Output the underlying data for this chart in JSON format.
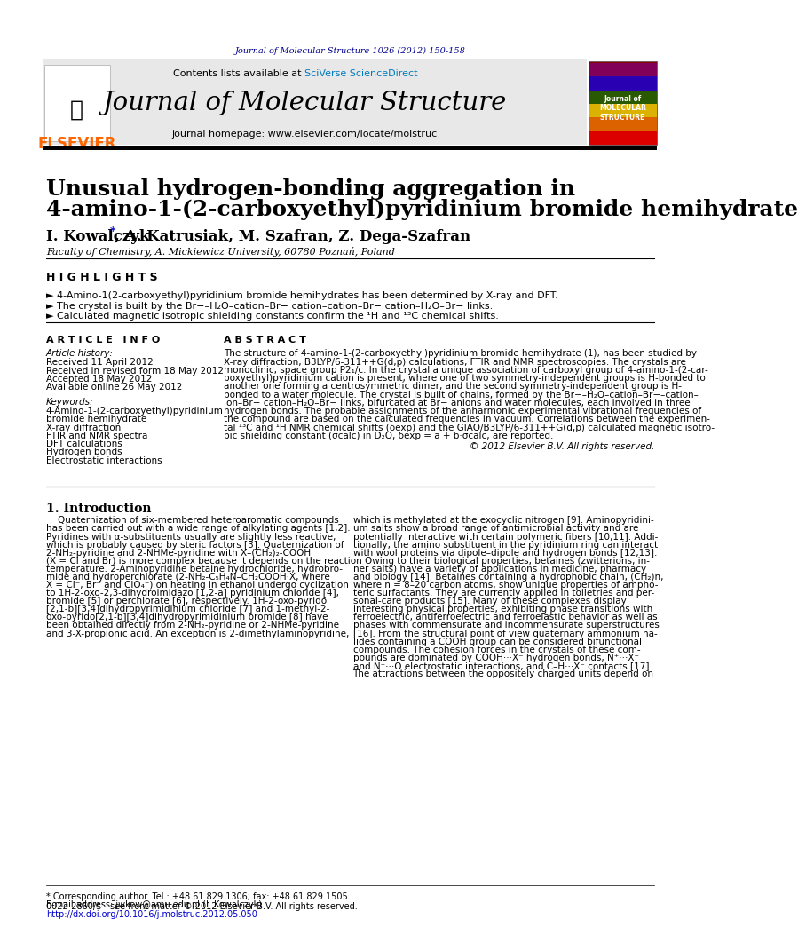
{
  "journal_ref": "Journal of Molecular Structure 1026 (2012) 150-158",
  "journal_name": "Journal of Molecular Structure",
  "journal_homepage": "journal homepage: www.elsevier.com/locate/molstruc",
  "contents_line": "Contents lists available at",
  "sciverse": "SciVerse ScienceDirect",
  "elsevier_color": "#FF6600",
  "title_line1": "Unusual hydrogen-bonding aggregation in",
  "title_line2": "4-amino-1-(2-carboxyethyl)pyridinium bromide hemihydrate",
  "author_part1": "I. Kowalczyk",
  "author_star": "*",
  "author_part2": ", A. Katrusiak, M. Szafran, Z. Dega-Szafran",
  "affiliation": "Faculty of Chemistry, A. Mickiewicz University, 60780 Poznań, Poland",
  "highlights_title": "H I G H L I G H T S",
  "highlight1": "► 4-Amino-1(2-carboxyethyl)pyridinium bromide hemihydrates has been determined by X-ray and DFT.",
  "highlight2": "► The crystal is built by the Br−–H₂O–cation–Br− cation–cation–Br− cation–H₂O–Br− links.",
  "highlight3": "► Calculated magnetic isotropic shielding constants confirm the ¹H and ¹³C chemical shifts.",
  "article_info_title": "A R T I C L E   I N F O",
  "abstract_title": "A B S T R A C T",
  "article_history_label": "Article history:",
  "received": "Received 11 April 2012",
  "received_revised": "Received in revised form 18 May 2012",
  "accepted": "Accepted 18 May 2012",
  "available": "Available online 26 May 2012",
  "keywords_label": "Keywords:",
  "keywords": [
    "4-Amino-1-(2-carboxyethyl)pyridinium",
    "bromide hemihydrate",
    "X-ray diffraction",
    "FTIR and NMR spectra",
    "DFT calculations",
    "Hydrogen bonds",
    "Electrostatic interactions"
  ],
  "abstract_lines": [
    "The structure of 4-amino-1-(2-carboxyethyl)pyridinium bromide hemihydrate (1), has been studied by",
    "X-ray diffraction, B3LYP/6-311++G(d,p) calculations, FTIR and NMR spectroscopies. The crystals are",
    "monoclinic, space group P2₁/c. In the crystal a unique association of carboxyl group of 4-amino-1-(2-car-",
    "boxyethyl)pyridinium cation is present, where one of two symmetry-independent groups is H-bonded to",
    "another one forming a centrosymmetric dimer, and the second symmetry-independent group is H-",
    "bonded to a water molecule. The crystal is built of chains, formed by the Br−–H₂O–cation–Br−–cation–",
    "ion–Br− cation–H₂O–Br− links, bifurcated at Br− anions and water molecules, each involved in three",
    "hydrogen bonds. The probable assignments of the anharmonic experimental vibrational frequencies of",
    "the compound are based on the calculated frequencies in vacuum. Correlations between the experimen-",
    "tal ¹³C and ¹H NMR chemical shifts (δexp) and the GIAO/B3LYP/6-311++G(d,p) calculated magnetic isotro-",
    "pic shielding constant (σcalc) in D₂O, δexp = a + b·σcalc, are reported."
  ],
  "copyright": "© 2012 Elsevier B.V. All rights reserved.",
  "section1_title": "1. Introduction",
  "intro_col1_lines": [
    "    Quaternization of six-membered heteroaromatic compounds",
    "has been carried out with a wide range of alkylating agents [1,2].",
    "Pyridines with α-substituents usually are slightly less reactive,",
    "which is probably caused by steric factors [3]. Quaternization of",
    "2-NH₂-pyridine and 2-NHMe-pyridine with X–(CH₂)₂-COOH",
    "(X = Cl and Br) is more complex because it depends on the reaction",
    "temperature. 2-Aminopyridine betaine hydrochloride, hydrobro-",
    "mide and hydroperchlorate (2-NH₂-C₅H₄N–CH₂COOH·X, where",
    "X = Cl⁻, Br⁻ and ClO₄⁻) on heating in ethanol undergo cyclization",
    "to 1H-2-oxo-2,3-dihydroimidazo [1,2-a] pyridinium chloride [4],",
    "bromide [5] or perchlorate [6], respectively. 1H-2-oxo-pyrido",
    "[2,1-b][3,4]dihydropyrimidinium chloride [7] and 1-methyl-2-",
    "oxo-pyrido[2,1-b][3,4]dihydropyrimidinium bromide [8] have",
    "been obtained directly from 2-NH₂-pyridine or 2-NHMe-pyridine",
    "and 3-X-propionic acid. An exception is 2-dimethylaminopyridine,"
  ],
  "intro_col2_lines": [
    "which is methylated at the exocyclic nitrogen [9]. Aminopyridini-",
    "um salts show a broad range of antimicrobial activity and are",
    "potentially interactive with certain polymeric fibers [10,11]. Addi-",
    "tionally, the amino substituent in the pyridinium ring can interact",
    "with wool proteins via dipole–dipole and hydrogen bonds [12,13].",
    "    Owing to their biological properties, betaines (zwitterions, in-",
    "ner salts) have a variety of applications in medicine, pharmacy",
    "and biology [14]. Betaines containing a hydrophobic chain, (CH₂)n,",
    "where n = 8–20 carbon atoms, show unique properties of ampho-",
    "teric surfactants. They are currently applied in toiletries and per-",
    "sonal-care products [15]. Many of these complexes display",
    "interesting physical properties, exhibiting phase transitions with",
    "ferroelectric, antiferroelectric and ferroelastic behavior as well as",
    "phases with commensurate and incommensurate superstructures",
    "[16]. From the structural point of view quaternary ammonium ha-",
    "lides containing a COOH group can be considered bifunctional",
    "compounds. The cohesion forces in the crystals of these com-",
    "pounds are dominated by COOH···X⁻ hydrogen bonds, N⁺···X⁻",
    "and N⁺···O electrostatic interactions, and C–H···X⁻ contacts [17].",
    "The attractions between the oppositely charged units depend on"
  ],
  "footnote1": "* Corresponding author. Tel.: +48 61 829 1306; fax: +48 61 829 1505.",
  "footnote2": "E-mail address: jwkow@amu.edu.pl (I. Kowalczyk).",
  "footer_line1": "0022-2860/$ - see front matter © 2012 Elsevier B.V. All rights reserved.",
  "footer_line2": "http://dx.doi.org/10.1016/j.molstruc.2012.05.050",
  "dark_navy": "#00008B",
  "black": "#000000",
  "header_bg": "#e8e8e8",
  "elsevier_orange": "#FF6600",
  "link_blue": "#0000CC",
  "sciverse_blue": "#007BBD"
}
